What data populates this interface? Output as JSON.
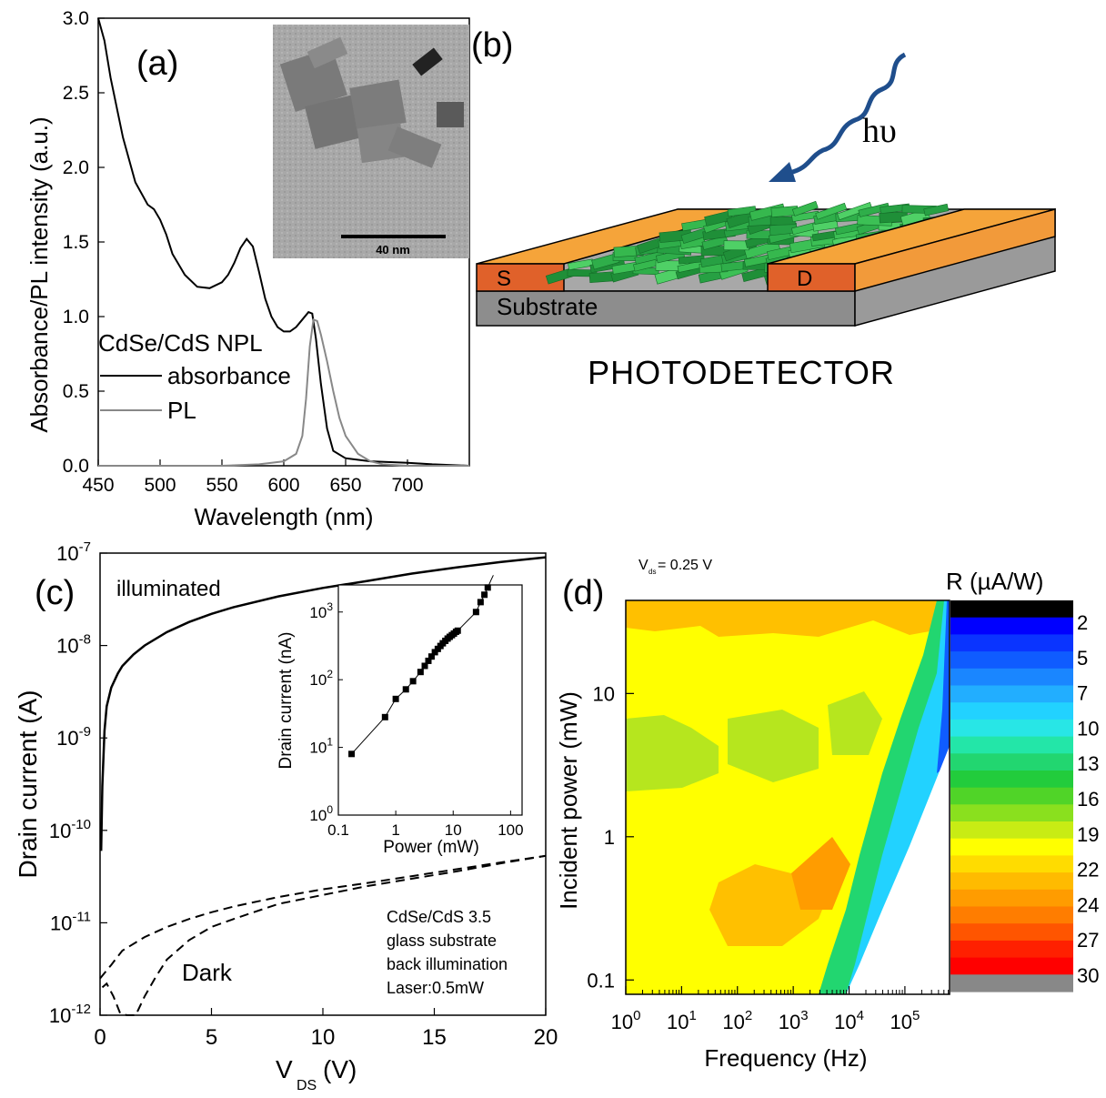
{
  "chart_data": [
    {
      "panel": "(a)",
      "type": "line",
      "xlabel": "Wavelength (nm)",
      "ylabel": "Absorbance/PL intensity (a.u.)",
      "xlim": [
        450,
        750
      ],
      "ylim": [
        0,
        3.0
      ],
      "xticks": [
        "450",
        "500",
        "550",
        "600",
        "650",
        "700"
      ],
      "yticks": [
        "0.0",
        "0.5",
        "1.0",
        "1.5",
        "2.0",
        "2.5",
        "3.0"
      ],
      "legend_title": "CdSe/CdS NPL",
      "series": [
        {
          "name": "absorbance",
          "color": "#000000",
          "x": [
            450,
            455,
            460,
            470,
            480,
            490,
            495,
            500,
            505,
            510,
            520,
            530,
            540,
            550,
            555,
            560,
            565,
            570,
            575,
            580,
            585,
            590,
            595,
            600,
            605,
            610,
            615,
            620,
            623,
            626,
            630,
            635,
            640,
            650,
            670,
            700,
            720,
            750
          ],
          "y": [
            3.0,
            2.85,
            2.6,
            2.2,
            1.9,
            1.75,
            1.72,
            1.65,
            1.55,
            1.42,
            1.28,
            1.2,
            1.19,
            1.23,
            1.28,
            1.36,
            1.46,
            1.52,
            1.47,
            1.3,
            1.12,
            1.0,
            0.93,
            0.9,
            0.9,
            0.93,
            0.98,
            1.03,
            1.02,
            0.85,
            0.55,
            0.25,
            0.1,
            0.05,
            0.03,
            0.02,
            0.01,
            0.0
          ]
        },
        {
          "name": "PL",
          "color": "#888888",
          "x": [
            450,
            550,
            580,
            600,
            610,
            615,
            618,
            621,
            624,
            627,
            630,
            635,
            640,
            645,
            650,
            660,
            670,
            680,
            700,
            750
          ],
          "y": [
            0,
            0,
            0.01,
            0.03,
            0.08,
            0.2,
            0.45,
            0.8,
            0.98,
            0.97,
            0.88,
            0.7,
            0.5,
            0.32,
            0.2,
            0.08,
            0.03,
            0.01,
            0,
            0
          ]
        }
      ],
      "inset": {
        "scale_bar": "40 nm"
      }
    },
    {
      "panel": "(b)",
      "type": "diagram",
      "labels": {
        "photon": "hυ",
        "source": "S",
        "drain": "D",
        "substrate": "Substrate",
        "caption": "PHOTODETECTOR"
      },
      "colors": {
        "electrode_top": "#f5a43a",
        "electrode_side": "#e0612a",
        "substrate_top": "#a8a8a8",
        "substrate_front": "#8d8d8d",
        "platelets": "#2fae4a",
        "arrow": "#1f4e8c"
      }
    },
    {
      "panel": "(c)",
      "type": "line",
      "xlabel": "V",
      "xlabel_sub": "DS",
      "xlabel_unit": " (V)",
      "ylabel": "Drain current (A)",
      "xlim": [
        0,
        20
      ],
      "ylim_log10": [
        -12,
        -7
      ],
      "xticks": [
        "0",
        "5",
        "10",
        "15",
        "20"
      ],
      "yticks_exp": [
        "-7",
        "-8",
        "-9",
        "-10",
        "-11",
        "-12"
      ],
      "annotations": [
        "illuminated",
        "Dark",
        "CdSe/CdS 3.5",
        "glass substrate",
        "back illumination",
        "Laser:0.5mW"
      ],
      "series": [
        {
          "style": "solid",
          "x": [
            0.05,
            0.1,
            0.2,
            0.3,
            0.5,
            0.8,
            1,
            1.5,
            2,
            3,
            4,
            5,
            6,
            8,
            10,
            12,
            14,
            16,
            18,
            20
          ],
          "y": [
            6e-11,
            3e-10,
            1.2e-09,
            2.2e-09,
            3.5e-09,
            5e-09,
            6e-09,
            8e-09,
            1e-08,
            1.4e-08,
            1.8e-08,
            2.2e-08,
            2.6e-08,
            3.4e-08,
            4.2e-08,
            5e-08,
            6e-08,
            7e-08,
            8e-08,
            9e-08
          ]
        },
        {
          "style": "dashed",
          "x": [
            0,
            0.5,
            1,
            2,
            3,
            4,
            5,
            6,
            8,
            10,
            12,
            14,
            16,
            18,
            20
          ],
          "y": [
            2.5e-12,
            3.5e-12,
            5e-12,
            7e-12,
            9e-12,
            1.1e-11,
            1.3e-11,
            1.5e-11,
            1.9e-11,
            2.3e-11,
            2.7e-11,
            3.2e-11,
            3.8e-11,
            4.5e-11,
            5.3e-11
          ]
        },
        {
          "style": "dashed",
          "x": [
            0.1,
            0.3,
            0.6,
            0.9,
            1.2,
            1.6,
            2,
            2.5,
            3,
            4,
            5,
            6,
            8,
            10,
            12,
            14,
            16,
            18,
            20
          ],
          "y": [
            2e-12,
            2.2e-12,
            1.6e-12,
            1.05e-12,
            1e-12,
            1e-12,
            1.6e-12,
            2.6e-12,
            4e-12,
            6.5e-12,
            9e-12,
            1.1e-11,
            1.6e-11,
            2e-11,
            2.5e-11,
            3e-11,
            3.6e-11,
            4.4e-11,
            5.3e-11
          ]
        }
      ],
      "inset": {
        "type": "scatter",
        "xlabel": "Power (mW)",
        "ylabel": "Drain current (nA)",
        "xticks": [
          "0.1",
          "1",
          "10",
          "100"
        ],
        "yticks_exp": [
          "0",
          "1",
          "2",
          "3"
        ],
        "x": [
          0.17,
          0.65,
          1.0,
          1.5,
          2.0,
          2.7,
          3.2,
          3.7,
          4.2,
          4.8,
          5.4,
          6.0,
          6.6,
          7.3,
          8.0,
          8.7,
          9.5,
          10.3,
          11.2,
          12,
          25,
          30,
          35,
          40,
          45,
          50
        ],
        "y": [
          8,
          28,
          52,
          72,
          95,
          130,
          160,
          190,
          220,
          255,
          285,
          315,
          345,
          375,
          405,
          430,
          455,
          480,
          510,
          530,
          1000,
          1400,
          1800,
          2300,
          2900,
          3500
        ]
      }
    },
    {
      "panel": "(d)",
      "type": "heatmap",
      "title": "V",
      "title_sub": "ds",
      "title_rest": " = 0.25 V",
      "xlabel": "Frequency (Hz)",
      "ylabel": "Incident power (mW)",
      "xlim_log10": [
        0,
        5.8
      ],
      "ylim_log10": [
        -1.1,
        1.65
      ],
      "xticks_exp": [
        "0",
        "1",
        "2",
        "3",
        "4",
        "5"
      ],
      "yticks": [
        "10",
        "1",
        "0.1"
      ],
      "colorbar_title": "R (µA/W)",
      "colorbar_ticks": [
        "2",
        "5",
        "7",
        "10",
        "13",
        "16",
        "19",
        "22",
        "24",
        "27",
        "30"
      ],
      "colorbar_colors": [
        "#000000",
        "#0000ff",
        "#0a34ff",
        "#0f5cff",
        "#1a86ff",
        "#22aeff",
        "#22d2ff",
        "#28e6e6",
        "#23e6a8",
        "#22d670",
        "#22cc3c",
        "#50d428",
        "#8ae01e",
        "#c8ec14",
        "#ffff00",
        "#ffdc00",
        "#ffbb00",
        "#ff9c00",
        "#ff7d00",
        "#ff5500",
        "#ff2000",
        "#ff0000",
        "#888888"
      ],
      "regions": [
        {
          "name": "yellow-bulk",
          "color": "#ffff00"
        },
        {
          "name": "orange-patches",
          "color": "#ffc000"
        },
        {
          "name": "green-patches",
          "color": "#b6e61e"
        },
        {
          "name": "rolloff-edge",
          "color": "#22d670"
        }
      ]
    }
  ]
}
